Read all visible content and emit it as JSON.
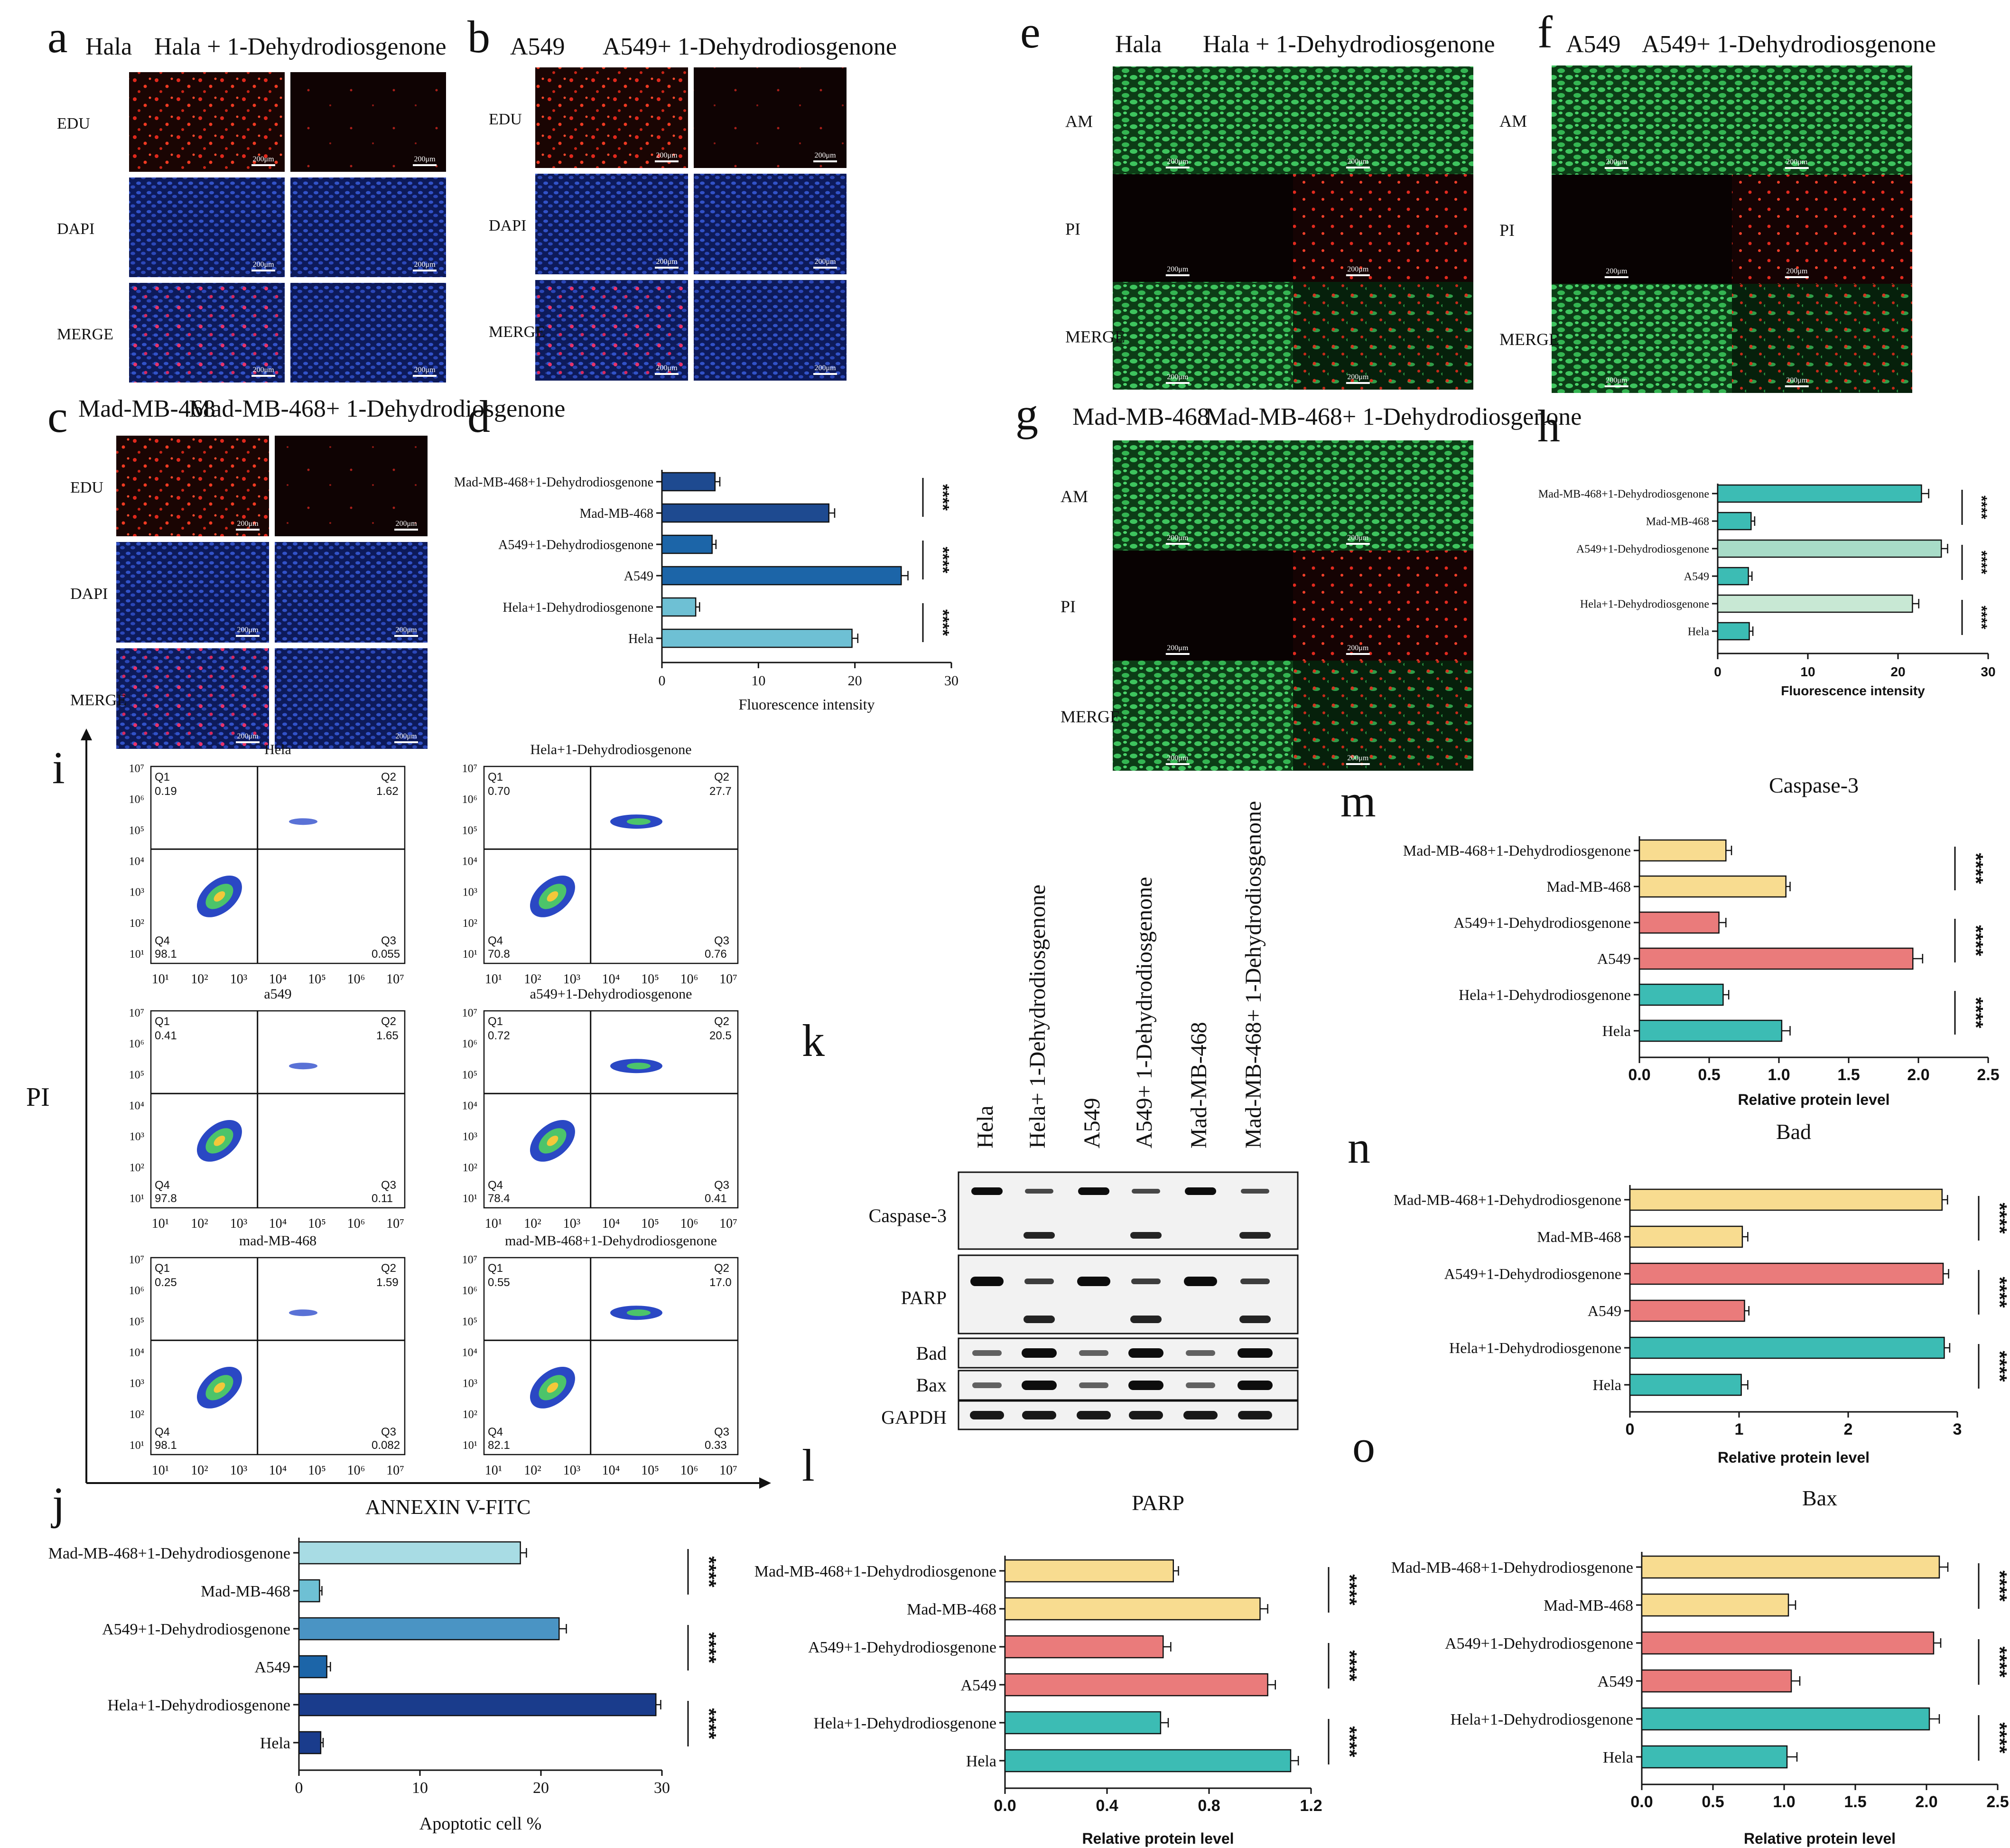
{
  "panel_letters": {
    "a": "a",
    "b": "b",
    "c": "c",
    "d": "d",
    "e": "e",
    "f": "f",
    "g": "g",
    "h": "h",
    "i": "i",
    "j": "j",
    "k": "k",
    "l": "l",
    "m": "m",
    "n": "n",
    "o": "o"
  },
  "edu_panels": {
    "a": {
      "left": "Hala",
      "right": "Hala + 1-Dehydrodiosgenone",
      "rows": [
        "EDU",
        "DAPI",
        "MERGE"
      ],
      "scale": "200μm"
    },
    "b": {
      "left": "A549",
      "right": "A549+ 1-Dehydrodiosgenone",
      "rows": [
        "EDU",
        "DAPI",
        "MERGE"
      ],
      "scale": "200μm"
    },
    "c": {
      "left": "Mad-MB-468",
      "right": "Mad-MB-468+ 1-Dehydrodiosgenone",
      "rows": [
        "EDU",
        "DAPI",
        "MERGE"
      ],
      "scale": "200μm"
    }
  },
  "live_dead_panels": {
    "e": {
      "left": "Hala",
      "right": "Hala + 1-Dehydrodiosgenone",
      "rows": [
        "AM",
        "PI",
        "MERGE"
      ],
      "scale": "200μm"
    },
    "f": {
      "left": "A549",
      "right": "A549+ 1-Dehydrodiosgenone",
      "rows": [
        "AM",
        "PI",
        "MERGE"
      ],
      "scale": "200μm"
    },
    "g": {
      "left": "Mad-MB-468",
      "right": "Mad-MB-468+ 1-Dehydrodiosgenone",
      "rows": [
        "AM",
        "PI",
        "MERGE"
      ],
      "scale": "200μm"
    }
  },
  "flow_cytometry": {
    "y_axis_label": "PI",
    "x_axis_label": "ANNEXIN V-FITC",
    "tick_labels": [
      "10¹",
      "10²",
      "10³",
      "10⁴",
      "10⁵",
      "10⁶",
      "10⁷"
    ],
    "plots": [
      {
        "title": "Hela",
        "Q1": "0.19",
        "Q2": "1.62",
        "Q3": "0.055",
        "Q4": "98.1"
      },
      {
        "title": "Hela+1-Dehydrodiosgenone",
        "Q1": "0.70",
        "Q2": "27.7",
        "Q3": "0.76",
        "Q4": "70.8"
      },
      {
        "title": "a549",
        "Q1": "0.41",
        "Q2": "1.65",
        "Q3": "0.11",
        "Q4": "97.8"
      },
      {
        "title": "a549+1-Dehydrodiosgenone",
        "Q1": "0.72",
        "Q2": "20.5",
        "Q3": "0.41",
        "Q4": "78.4"
      },
      {
        "title": "mad-MB-468",
        "Q1": "0.25",
        "Q2": "1.59",
        "Q3": "0.082",
        "Q4": "98.1"
      },
      {
        "title": "mad-MB-468+1-Dehydrodiosgenone",
        "Q1": "0.55",
        "Q2": "17.0",
        "Q3": "0.33",
        "Q4": "82.1"
      }
    ],
    "quadrant_names": [
      "Q1",
      "Q2",
      "Q3",
      "Q4"
    ]
  },
  "western_blot": {
    "lanes": [
      "Hela",
      "Hela+ 1-Dehydrodiosgenone",
      "A549",
      "A549+ 1-Dehydrodiosgenone",
      "Mad-MB-468",
      "Mad-MB-468+ 1-Dehydrodiosgenone"
    ],
    "rows": [
      "Caspase-3",
      "PARP",
      "Bad",
      "Bax",
      "GAPDH"
    ]
  },
  "colors": {
    "teal": "#3cbcb4",
    "red": "#ea7b7b",
    "yellow": "#f8dc90",
    "navy": "#1e4a90",
    "mid_blue": "#1c65a8",
    "light_blue": "#6ec0d4"
  },
  "chart_data": [
    {
      "id": "d",
      "type": "bar",
      "orientation": "horizontal",
      "title": "",
      "categories": [
        "Mad-MB-468+1-Dehydrodiosgenone",
        "Mad-MB-468",
        "A549+1-Dehydrodiosgenone",
        "A549",
        "Hela+1-Dehydrodiosgenone",
        "Hela"
      ],
      "values": [
        5.5,
        17.3,
        5.2,
        24.8,
        3.5,
        19.7
      ],
      "errors": [
        0.5,
        0.6,
        0.4,
        0.7,
        0.4,
        0.6
      ],
      "xlabel": "Fluorescence intensity",
      "xlim": [
        0,
        30
      ],
      "ticks": [
        "0",
        "10",
        "20",
        "30"
      ],
      "significance": [
        "****",
        "****",
        "****"
      ]
    },
    {
      "id": "h",
      "type": "bar",
      "orientation": "horizontal",
      "title": "",
      "categories": [
        "Mad-MB-468+1-Dehydrodiosgenone",
        "Mad-MB-468",
        "A549+1-Dehydrodiosgenone",
        "A549",
        "Hela+1-Dehydrodiosgenone",
        "Hela"
      ],
      "values": [
        22.6,
        3.7,
        24.8,
        3.4,
        21.6,
        3.5
      ],
      "errors": [
        0.8,
        0.4,
        0.7,
        0.4,
        0.7,
        0.4
      ],
      "xlabel": "Fluorescence intensity",
      "xlim": [
        0,
        30
      ],
      "ticks": [
        "0",
        "10",
        "20",
        "30"
      ],
      "significance": [
        "****",
        "****",
        "****"
      ]
    },
    {
      "id": "j",
      "type": "bar",
      "orientation": "horizontal",
      "title": "",
      "categories": [
        "Mad-MB-468+1-Dehydrodiosgenone",
        "Mad-MB-468",
        "A549+1-Dehydrodiosgenone",
        "A549",
        "Hela+1-Dehydrodiosgenone",
        "Hela"
      ],
      "values": [
        18.3,
        1.7,
        21.5,
        2.3,
        29.5,
        1.8
      ],
      "errors": [
        0.5,
        0.2,
        0.6,
        0.3,
        0.4,
        0.2
      ],
      "xlabel": "Apoptotic cell %",
      "xlim": [
        0,
        30
      ],
      "ticks": [
        "0",
        "10",
        "20",
        "30"
      ],
      "significance": [
        "****",
        "****",
        "****"
      ]
    },
    {
      "id": "m",
      "type": "bar",
      "orientation": "horizontal",
      "title": "Caspase-3",
      "categories": [
        "Mad-MB-468+1-Dehydrodiosgenone",
        "Mad-MB-468",
        "A549+1-Dehydrodiosgenone",
        "A549",
        "Hela+1-Dehydrodiosgenone",
        "Hela"
      ],
      "values": [
        0.62,
        1.05,
        0.57,
        1.96,
        0.6,
        1.02
      ],
      "errors": [
        0.04,
        0.03,
        0.05,
        0.07,
        0.04,
        0.06
      ],
      "xlabel": "Relative protein level",
      "xlim": [
        0,
        2.5
      ],
      "ticks": [
        "0.0",
        "0.5",
        "1.0",
        "1.5",
        "2.0",
        "2.5"
      ],
      "significance": [
        "****",
        "****",
        "****"
      ]
    },
    {
      "id": "n",
      "type": "bar",
      "orientation": "horizontal",
      "title": "Bad",
      "categories": [
        "Mad-MB-468+1-Dehydrodiosgenone",
        "Mad-MB-468",
        "A549+1-Dehydrodiosgenone",
        "A549",
        "Hela+1-Dehydrodiosgenone",
        "Hela"
      ],
      "values": [
        2.86,
        1.03,
        2.87,
        1.05,
        2.88,
        1.02
      ],
      "errors": [
        0.05,
        0.05,
        0.05,
        0.04,
        0.05,
        0.06
      ],
      "xlabel": "Relative protein level",
      "xlim": [
        0,
        3
      ],
      "ticks": [
        "0",
        "1",
        "2",
        "3"
      ],
      "significance": [
        "****",
        "****",
        "****"
      ]
    },
    {
      "id": "l",
      "type": "bar",
      "orientation": "horizontal",
      "title": "PARP",
      "categories": [
        "Mad-MB-468+1-Dehydrodiosgenone",
        "Mad-MB-468",
        "A549+1-Dehydrodiosgenone",
        "A549",
        "Hela+1-Dehydrodiosgenone",
        "Hela"
      ],
      "values": [
        0.66,
        1.0,
        0.62,
        1.03,
        0.61,
        1.12
      ],
      "errors": [
        0.02,
        0.03,
        0.03,
        0.03,
        0.03,
        0.03
      ],
      "xlabel": "Relative protein level",
      "xlim": [
        0,
        1.2
      ],
      "ticks": [
        "0.0",
        "0.4",
        "0.8",
        "1.2"
      ],
      "significance": [
        "****",
        "****",
        "****"
      ]
    },
    {
      "id": "o",
      "type": "bar",
      "orientation": "horizontal",
      "title": "Bax",
      "categories": [
        "Mad-MB-468+1-Dehydrodiosgenone",
        "Mad-MB-468",
        "A549+1-Dehydrodiosgenone",
        "A549",
        "Hela+1-Dehydrodiosgenone",
        "Hela"
      ],
      "values": [
        2.09,
        1.03,
        2.05,
        1.05,
        2.02,
        1.02
      ],
      "errors": [
        0.06,
        0.05,
        0.05,
        0.06,
        0.07,
        0.07
      ],
      "xlabel": "Relative protein level",
      "xlim": [
        0,
        2.5
      ],
      "ticks": [
        "0.0",
        "0.5",
        "1.0",
        "1.5",
        "2.0",
        "2.5"
      ],
      "significance": [
        "****",
        "****",
        "****"
      ]
    }
  ]
}
